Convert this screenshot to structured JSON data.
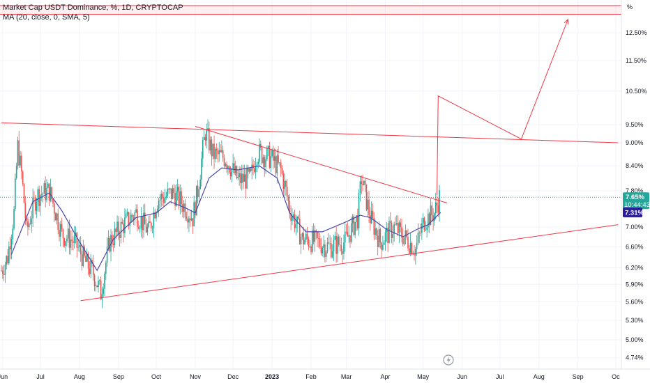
{
  "legend": {
    "symbol_line": "Market Cap USDT Dominance, %, 1D, CRYPTOCAP",
    "ma_line": "MA (20, close, 0, SMA, 5)"
  },
  "price_axis": {
    "unit_label": "%",
    "ticks": [
      "4.74%",
      "5.00%",
      "5.30%",
      "5.60%",
      "5.90%",
      "6.20%",
      "6.60%",
      "7.00%",
      "7.80%",
      "8.40%",
      "9.00%",
      "9.50%",
      "10.50%",
      "11.50%",
      "12.50%"
    ],
    "last_price_label": "7.65%",
    "countdown_label": "10:44:43",
    "ma_value_label": "7.31%"
  },
  "time_axis": {
    "ticks": [
      "Jun",
      "Jul",
      "Aug",
      "Sep",
      "Oct",
      "Nov",
      "Dec",
      "2023",
      "Feb",
      "Mar",
      "Apr",
      "May",
      "Jun",
      "Jul",
      "Aug",
      "Sep",
      "Oc"
    ]
  },
  "colors": {
    "up": "#26a69a",
    "down": "#ef5350",
    "ma": "#4b45a8",
    "drawing": "#f23645",
    "last_price_tag": "#26a69a",
    "ma_tag": "#2b1f9e",
    "grid": "#f0f3fa"
  },
  "icons": {
    "watermark": "tradingview-bolt-icon"
  },
  "chart_data": {
    "type": "candlestick",
    "title": "Market Cap USDT Dominance, %, 1D, CRYPTOCAP",
    "y_unit": "%",
    "y_scale": "log",
    "ylim": [
      4.6,
      14.2
    ],
    "x_range": [
      "2022-05-31",
      "2023-10-03"
    ],
    "grid": true,
    "series": [
      {
        "name": "MA (20, close, 0, SMA, 5)",
        "type": "line",
        "points": [
          [
            "2022-06-08",
            6.45
          ],
          [
            "2022-06-25",
            7.55
          ],
          [
            "2022-07-08",
            7.75
          ],
          [
            "2022-07-18",
            7.35
          ],
          [
            "2022-08-01",
            6.7
          ],
          [
            "2022-08-15",
            6.15
          ],
          [
            "2022-08-28",
            6.75
          ],
          [
            "2022-09-15",
            7.2
          ],
          [
            "2022-10-01",
            7.3
          ],
          [
            "2022-10-12",
            7.55
          ],
          [
            "2022-10-25",
            7.4
          ],
          [
            "2022-11-01",
            7.3
          ],
          [
            "2022-11-12",
            8.1
          ],
          [
            "2022-11-22",
            8.35
          ],
          [
            "2022-12-05",
            8.3
          ],
          [
            "2022-12-22",
            8.4
          ],
          [
            "2023-01-05",
            8.1
          ],
          [
            "2023-01-15",
            7.3
          ],
          [
            "2023-01-28",
            6.9
          ],
          [
            "2023-02-10",
            6.9
          ],
          [
            "2023-02-28",
            7.1
          ],
          [
            "2023-03-12",
            7.25
          ],
          [
            "2023-03-20",
            7.2
          ],
          [
            "2023-04-02",
            6.95
          ],
          [
            "2023-04-15",
            6.8
          ],
          [
            "2023-04-26",
            6.95
          ],
          [
            "2023-05-05",
            7.05
          ],
          [
            "2023-05-15",
            7.31
          ]
        ]
      }
    ],
    "drawings": [
      {
        "type": "trendline",
        "label": "upper resistance",
        "points": [
          [
            "2022-05-31",
            9.55
          ],
          [
            "2023-10-03",
            9.0
          ]
        ]
      },
      {
        "type": "trendline",
        "label": "lower support",
        "points": [
          [
            "2022-08-02",
            5.62
          ],
          [
            "2023-10-03",
            7.05
          ]
        ]
      },
      {
        "type": "trendline",
        "label": "descending resistance",
        "points": [
          [
            "2022-11-01",
            9.45
          ],
          [
            "2023-05-20",
            7.52
          ]
        ]
      },
      {
        "type": "path",
        "label": "projection",
        "points": [
          [
            "2023-05-12",
            7.7
          ],
          [
            "2023-05-13",
            10.35
          ],
          [
            "2023-07-18",
            9.1
          ],
          [
            "2023-08-24",
            13.0
          ]
        ]
      },
      {
        "type": "hline",
        "label": "target band top",
        "value": 13.55
      },
      {
        "type": "hline",
        "label": "target band bottom",
        "value": 13.2
      },
      {
        "type": "hline",
        "label": "last price",
        "value": 7.65,
        "style": "dotted"
      }
    ],
    "ohlc_anchors": [
      [
        "2022-05-31",
        6.15
      ],
      [
        "2022-06-05",
        6.4
      ],
      [
        "2022-06-10",
        7.3
      ],
      [
        "2022-06-13",
        8.9
      ],
      [
        "2022-06-16",
        8.2
      ],
      [
        "2022-06-20",
        6.9
      ],
      [
        "2022-06-28",
        7.7
      ],
      [
        "2022-07-08",
        7.8
      ],
      [
        "2022-07-18",
        6.85
      ],
      [
        "2022-07-28",
        6.7
      ],
      [
        "2022-08-06",
        6.3
      ],
      [
        "2022-08-12",
        6.1
      ],
      [
        "2022-08-18",
        5.75
      ],
      [
        "2022-08-25",
        6.7
      ],
      [
        "2022-09-05",
        7.05
      ],
      [
        "2022-09-15",
        7.3
      ],
      [
        "2022-09-25",
        6.9
      ],
      [
        "2022-10-02",
        7.6
      ],
      [
        "2022-10-15",
        7.75
      ],
      [
        "2022-10-22",
        7.5
      ],
      [
        "2022-10-30",
        7.2
      ],
      [
        "2022-11-03",
        7.8
      ],
      [
        "2022-11-09",
        9.3
      ],
      [
        "2022-11-15",
        8.7
      ],
      [
        "2022-11-25",
        8.6
      ],
      [
        "2022-12-05",
        8.05
      ],
      [
        "2022-12-15",
        8.1
      ],
      [
        "2022-12-20",
        8.75
      ],
      [
        "2022-12-31",
        8.6
      ],
      [
        "2023-01-08",
        8.3
      ],
      [
        "2023-01-15",
        7.4
      ],
      [
        "2023-01-25",
        6.75
      ],
      [
        "2023-02-05",
        6.7
      ],
      [
        "2023-02-15",
        6.6
      ],
      [
        "2023-02-28",
        6.7
      ],
      [
        "2023-03-10",
        7.2
      ],
      [
        "2023-03-13",
        8.1
      ],
      [
        "2023-03-20",
        7.2
      ],
      [
        "2023-03-28",
        6.7
      ],
      [
        "2023-04-08",
        7.0
      ],
      [
        "2023-04-18",
        6.75
      ],
      [
        "2023-04-25",
        6.55
      ],
      [
        "2023-05-02",
        7.15
      ],
      [
        "2023-05-10",
        7.3
      ],
      [
        "2023-05-14",
        7.65
      ]
    ]
  }
}
